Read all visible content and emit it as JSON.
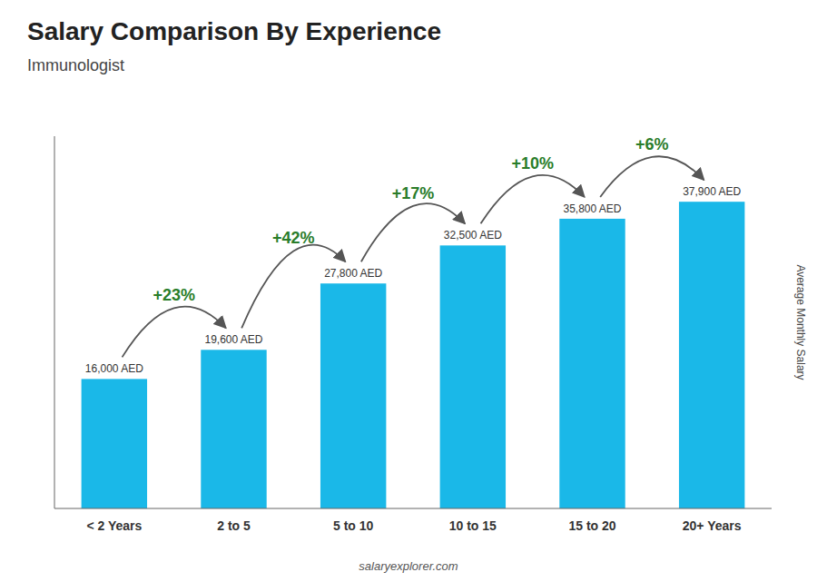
{
  "chart_data": {
    "type": "bar",
    "title": "Salary Comparison By Experience",
    "subtitle": "Immunologist",
    "y_label": "Average Monthly Salary",
    "footer": "salaryexplorer.com",
    "categories": [
      "< 2 Years",
      "2 to 5",
      "5 to 10",
      "10 to 15",
      "15 to 20",
      "20+ Years"
    ],
    "values": [
      16000,
      19600,
      27800,
      32500,
      35800,
      37900
    ],
    "value_labels": [
      "16,000 AED",
      "19,600 AED",
      "27,800 AED",
      "32,500 AED",
      "35,800 AED",
      "37,900 AED"
    ],
    "data_labels": true,
    "annotations": [
      "+23%",
      "+42%",
      "+17%",
      "+10%",
      "+6%"
    ],
    "color": "#1ab8e8",
    "ylim": [
      0,
      46000
    ],
    "tick_labels": "x",
    "grid": false
  }
}
